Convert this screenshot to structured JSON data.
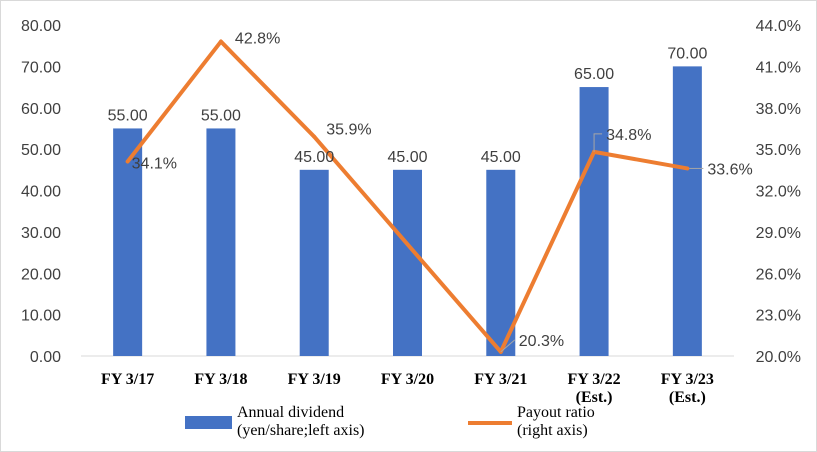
{
  "chart_data": {
    "type": "bar",
    "categories": [
      [
        "FY 3/17"
      ],
      [
        "FY 3/18"
      ],
      [
        "FY 3/19"
      ],
      [
        "FY 3/20"
      ],
      [
        "FY 3/21"
      ],
      [
        "FY 3/22",
        "(Est.)"
      ],
      [
        "FY 3/23",
        "(Est.)"
      ]
    ],
    "series": [
      {
        "name_lines": [
          "Annual dividend",
          "(yen/share;left axis)"
        ],
        "type": "bar",
        "axis": "left",
        "values": [
          55.0,
          55.0,
          45.0,
          45.0,
          45.0,
          65.0,
          70.0
        ],
        "labels": [
          "55.00",
          "55.00",
          "45.00",
          "45.00",
          "45.00",
          "65.00",
          "70.00"
        ],
        "color": "#4472c4"
      },
      {
        "name_lines": [
          "Payout ratio",
          "(right axis)"
        ],
        "type": "line",
        "axis": "right",
        "values": [
          34.1,
          42.8,
          35.9,
          null,
          20.3,
          34.8,
          33.6
        ],
        "labels": [
          "34.1%",
          "42.8%",
          "35.9%",
          null,
          "20.3%",
          "34.8%",
          "33.6%"
        ],
        "color": "#ed7d31"
      }
    ],
    "left_axis": {
      "ylim": [
        0,
        80
      ],
      "ticks": [
        0,
        10,
        20,
        30,
        40,
        50,
        60,
        70,
        80
      ],
      "tick_labels": [
        "0.00",
        "10.00",
        "20.00",
        "30.00",
        "40.00",
        "50.00",
        "60.00",
        "70.00",
        "80.00"
      ]
    },
    "right_axis": {
      "ylim": [
        20,
        44
      ],
      "ticks": [
        20,
        23,
        26,
        29,
        32,
        35,
        38,
        41,
        44
      ],
      "tick_labels": [
        "20.0%",
        "23.0%",
        "26.0%",
        "29.0%",
        "32.0%",
        "35.0%",
        "38.0%",
        "41.0%",
        "44.0%"
      ]
    },
    "grid": false,
    "legend_position": "bottom"
  }
}
